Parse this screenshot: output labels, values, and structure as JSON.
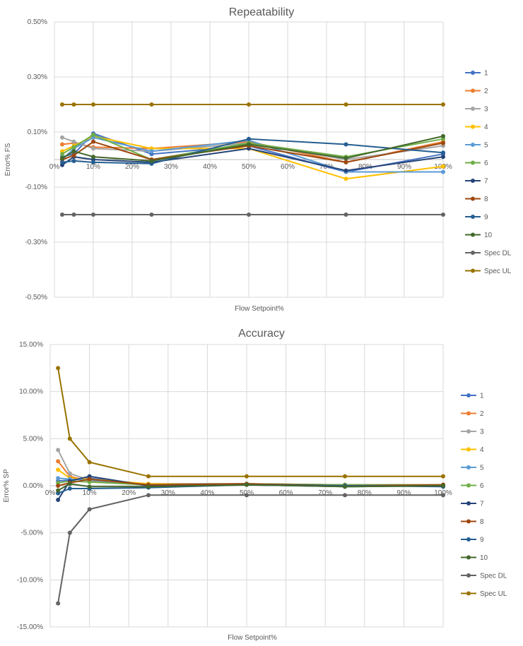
{
  "chart_data": [
    {
      "type": "line",
      "title": "Repeatability",
      "xlabel": "Flow Setpoint%",
      "ylabel": "Error% FS",
      "x": [
        2,
        5,
        10,
        25,
        50,
        75,
        100
      ],
      "xlim": [
        0,
        100
      ],
      "ylim": [
        -0.5,
        0.5
      ],
      "x_ticks": [
        0,
        10,
        20,
        30,
        40,
        50,
        60,
        70,
        80,
        90,
        100
      ],
      "x_tick_labels": [
        "0%",
        "10%",
        "20%",
        "30%",
        "40%",
        "50%",
        "60%",
        "70%",
        "80%",
        "90%",
        "100%"
      ],
      "y_ticks": [
        0.5,
        0.3,
        0.1,
        -0.1,
        -0.3,
        -0.5
      ],
      "y_tick_labels": [
        "0.50%",
        "0.30%",
        "0.10%",
        "-0.10%",
        "-0.30%",
        "-0.50%"
      ],
      "grid": true,
      "legend_position": "right",
      "series": [
        {
          "name": "1",
          "color": "#4472c4",
          "values": [
            0.01,
            0.02,
            0.095,
            0.02,
            0.05,
            -0.045,
            0.02
          ]
        },
        {
          "name": "2",
          "color": "#ed7d31",
          "values": [
            0.055,
            0.06,
            0.045,
            0.04,
            0.065,
            -0.01,
            0.065
          ]
        },
        {
          "name": "3",
          "color": "#a5a5a5",
          "values": [
            0.08,
            0.065,
            0.04,
            0.03,
            0.06,
            0.0,
            0.05
          ]
        },
        {
          "name": "4",
          "color": "#ffc000",
          "values": [
            0.03,
            0.05,
            0.085,
            0.04,
            0.04,
            -0.07,
            -0.025
          ]
        },
        {
          "name": "5",
          "color": "#5b9bd5",
          "values": [
            0.0,
            0.04,
            0.08,
            0.03,
            0.07,
            -0.045,
            -0.045
          ]
        },
        {
          "name": "6",
          "color": "#70ad47",
          "values": [
            0.02,
            0.045,
            0.09,
            0.0,
            0.06,
            0.01,
            0.075
          ]
        },
        {
          "name": "7",
          "color": "#264478",
          "values": [
            -0.02,
            0.01,
            0.0,
            -0.01,
            0.04,
            -0.04,
            0.01
          ]
        },
        {
          "name": "8",
          "color": "#9e480e",
          "values": [
            0.0,
            0.015,
            0.065,
            0.0,
            0.05,
            -0.01,
            0.06
          ]
        },
        {
          "name": "9",
          "color": "#255e91",
          "values": [
            -0.01,
            -0.005,
            -0.01,
            -0.015,
            0.075,
            0.055,
            0.025
          ]
        },
        {
          "name": "10",
          "color": "#43682b",
          "values": [
            0.005,
            0.03,
            0.01,
            -0.005,
            0.055,
            0.005,
            0.085
          ]
        },
        {
          "name": "Spec DL",
          "color": "#636363",
          "values": [
            -0.2,
            -0.2,
            -0.2,
            -0.2,
            -0.2,
            -0.2,
            -0.2
          ]
        },
        {
          "name": "Spec UL",
          "color": "#997300",
          "values": [
            0.2,
            0.2,
            0.2,
            0.2,
            0.2,
            0.2,
            0.2
          ]
        }
      ]
    },
    {
      "type": "line",
      "title": "Accuracy",
      "xlabel": "Flow Setpoint%",
      "ylabel": "Error% SP",
      "x": [
        2,
        5,
        10,
        25,
        50,
        75,
        100
      ],
      "xlim": [
        0,
        100
      ],
      "ylim": [
        -15,
        15
      ],
      "x_ticks": [
        0,
        10,
        20,
        30,
        40,
        50,
        60,
        70,
        80,
        90,
        100
      ],
      "x_tick_labels": [
        "0%",
        "10%",
        "20%",
        "30%",
        "40%",
        "50%",
        "60%",
        "70%",
        "80%",
        "90%",
        "100%"
      ],
      "y_ticks": [
        15,
        10,
        5,
        0,
        -5,
        -10,
        -15
      ],
      "y_tick_labels": [
        "15.00%",
        "10.00%",
        "5.00%",
        "0.00%",
        "-5.00%",
        "-10.00%",
        "-15.00%"
      ],
      "grid": true,
      "legend_position": "right",
      "series": [
        {
          "name": "1",
          "color": "#4472c4",
          "values": [
            0.5,
            0.6,
            0.8,
            0.1,
            0.2,
            0.0,
            0.1
          ]
        },
        {
          "name": "2",
          "color": "#ed7d31",
          "values": [
            2.6,
            1.0,
            0.5,
            0.2,
            0.2,
            0.1,
            0.1
          ]
        },
        {
          "name": "3",
          "color": "#a5a5a5",
          "values": [
            3.8,
            1.3,
            0.6,
            0.2,
            0.2,
            0.1,
            0.1
          ]
        },
        {
          "name": "4",
          "color": "#ffc000",
          "values": [
            1.7,
            0.8,
            0.7,
            0.2,
            0.1,
            0.0,
            0.0
          ]
        },
        {
          "name": "5",
          "color": "#5b9bd5",
          "values": [
            0.8,
            0.7,
            0.6,
            0.1,
            0.2,
            0.0,
            0.0
          ]
        },
        {
          "name": "6",
          "color": "#70ad47",
          "values": [
            0.3,
            0.5,
            0.4,
            0.1,
            0.2,
            0.1,
            0.1
          ]
        },
        {
          "name": "7",
          "color": "#264478",
          "values": [
            -1.5,
            0.5,
            1.0,
            0.0,
            0.1,
            -0.1,
            0.0
          ]
        },
        {
          "name": "8",
          "color": "#9e480e",
          "values": [
            0.0,
            0.3,
            0.7,
            0.1,
            0.2,
            0.0,
            0.1
          ]
        },
        {
          "name": "9",
          "color": "#255e91",
          "values": [
            -0.8,
            -0.3,
            -0.3,
            -0.2,
            0.1,
            0.0,
            -0.1
          ]
        },
        {
          "name": "10",
          "color": "#43682b",
          "values": [
            -0.5,
            0.2,
            -0.1,
            -0.1,
            0.1,
            -0.1,
            0.0
          ]
        },
        {
          "name": "Spec DL",
          "color": "#636363",
          "values": [
            -12.5,
            -5.0,
            -2.5,
            -1.0,
            -1.0,
            -1.0,
            -1.0
          ]
        },
        {
          "name": "Spec UL",
          "color": "#997300",
          "values": [
            12.5,
            5.0,
            2.5,
            1.0,
            1.0,
            1.0,
            1.0
          ]
        }
      ]
    }
  ]
}
